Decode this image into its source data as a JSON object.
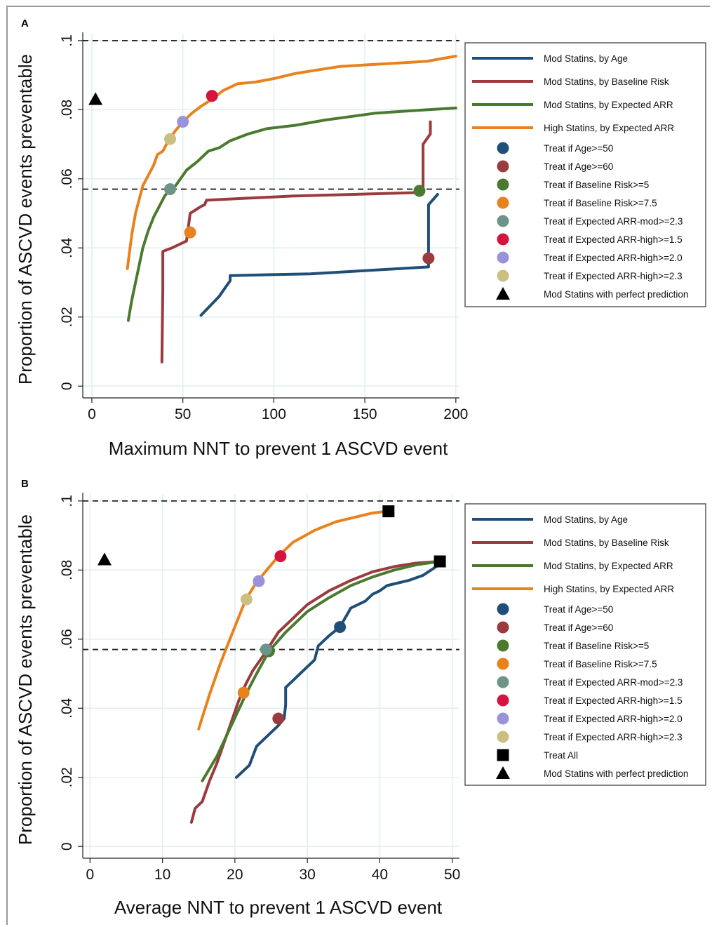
{
  "chart_data": [
    {
      "panel_label": "A",
      "type": "line",
      "xlabel": "Maximum NNT to prevent 1 ASCVD event",
      "ylabel": "Proportion of ASCVD events preventable",
      "xlim": [
        -5,
        202
      ],
      "ylim": [
        -0.003,
        0.102
      ],
      "xticks": [
        0,
        50,
        100,
        150,
        200
      ],
      "xtick_labels": [
        "0",
        "50",
        "100",
        "150",
        "200"
      ],
      "yticks": [
        0,
        0.02,
        0.04,
        0.06,
        0.08,
        0.1
      ],
      "ytick_labels": [
        "0",
        ".02",
        ".04",
        ".06",
        ".08",
        ".1"
      ],
      "grid": true,
      "reference_lines_y": [
        0.1,
        0.057
      ],
      "legend_position": "right",
      "series": [
        {
          "name": "Mod Statins, by Age",
          "color": "#1f4e79",
          "points": [
            [
              60,
              0.0205
            ],
            [
              70,
              0.026
            ],
            [
              74,
              0.029
            ],
            [
              76,
              0.0305
            ],
            [
              76,
              0.032
            ],
            [
              120,
              0.0325
            ],
            [
              185,
              0.0345
            ],
            [
              185,
              0.0525
            ],
            [
              190,
              0.0555
            ]
          ]
        },
        {
          "name": "Mod Statins, by Baseline Risk",
          "color": "#9b3a3f",
          "points": [
            [
              38.5,
              0.007
            ],
            [
              39,
              0.028
            ],
            [
              39,
              0.039
            ],
            [
              44,
              0.04
            ],
            [
              52,
              0.042
            ],
            [
              53,
              0.046
            ],
            [
              54,
              0.05
            ],
            [
              60,
              0.052
            ],
            [
              62,
              0.0525
            ],
            [
              63,
              0.0538
            ],
            [
              110,
              0.055
            ],
            [
              178,
              0.056
            ],
            [
              181,
              0.0568
            ],
            [
              182,
              0.0575
            ],
            [
              182,
              0.07
            ],
            [
              186,
              0.073
            ],
            [
              186,
              0.0765
            ]
          ]
        },
        {
          "name": "Mod Statins, by Expected ARR",
          "color": "#4a7a2e",
          "points": [
            [
              20,
              0.019
            ],
            [
              21,
              0.022
            ],
            [
              22,
              0.025
            ],
            [
              24,
              0.03
            ],
            [
              26,
              0.035
            ],
            [
              28,
              0.04
            ],
            [
              31,
              0.045
            ],
            [
              34,
              0.049
            ],
            [
              37,
              0.052
            ],
            [
              40,
              0.055
            ],
            [
              43,
              0.057
            ],
            [
              46,
              0.058
            ],
            [
              48,
              0.0595
            ],
            [
              52,
              0.0625
            ],
            [
              58,
              0.065
            ],
            [
              64,
              0.068
            ],
            [
              70,
              0.069
            ],
            [
              76,
              0.071
            ],
            [
              86,
              0.073
            ],
            [
              96,
              0.0745
            ],
            [
              112,
              0.0755
            ],
            [
              128,
              0.077
            ],
            [
              142,
              0.078
            ],
            [
              156,
              0.079
            ],
            [
              170,
              0.0795
            ],
            [
              185,
              0.08
            ],
            [
              200,
              0.0805
            ]
          ]
        },
        {
          "name": "High Statins, by Expected ARR",
          "color": "#e8821e",
          "points": [
            [
              19.5,
              0.034
            ],
            [
              21,
              0.04
            ],
            [
              22,
              0.044
            ],
            [
              24,
              0.05
            ],
            [
              26,
              0.054
            ],
            [
              28,
              0.058
            ],
            [
              31,
              0.061
            ],
            [
              34,
              0.064
            ],
            [
              36,
              0.067
            ],
            [
              39,
              0.068
            ],
            [
              42,
              0.071
            ],
            [
              46,
              0.074
            ],
            [
              50,
              0.0765
            ],
            [
              55,
              0.079
            ],
            [
              60,
              0.081
            ],
            [
              66,
              0.083
            ],
            [
              72,
              0.0855
            ],
            [
              80,
              0.0875
            ],
            [
              90,
              0.088
            ],
            [
              100,
              0.089
            ],
            [
              112,
              0.0905
            ],
            [
              124,
              0.0915
            ],
            [
              136,
              0.0925
            ],
            [
              152,
              0.093
            ],
            [
              168,
              0.0935
            ],
            [
              184,
              0.094
            ],
            [
              200,
              0.0955
            ]
          ]
        }
      ],
      "markers": [
        {
          "name": "Treat if Age>=50",
          "shape": "circle",
          "color": "#1f4e79",
          "x": null,
          "y": null
        },
        {
          "name": "Treat if Age>=60",
          "shape": "circle",
          "color": "#9b3a3f",
          "x": 185,
          "y": 0.037
        },
        {
          "name": "Treat if Baseline Risk>=5",
          "shape": "circle",
          "color": "#4a7a2e",
          "x": 180,
          "y": 0.0565
        },
        {
          "name": "Treat if Baseline Risk>=7.5",
          "shape": "circle",
          "color": "#e8821e",
          "x": 54,
          "y": 0.0445
        },
        {
          "name": "Treat if Expected ARR-mod>=2.3",
          "shape": "circle",
          "color": "#6d9488",
          "x": 43,
          "y": 0.057
        },
        {
          "name": "Treat if Expected ARR-high>=1.5",
          "shape": "circle",
          "color": "#d4143f",
          "x": 66,
          "y": 0.084
        },
        {
          "name": "Treat if Expected ARR-high>=2.0",
          "shape": "circle",
          "color": "#9a93da",
          "x": 50,
          "y": 0.0765
        },
        {
          "name": "Treat if Expected ARR-high>=2.3",
          "shape": "circle",
          "color": "#cbc082",
          "x": 43,
          "y": 0.0715
        },
        {
          "name": "Mod Statins with perfect prediction",
          "shape": "triangle",
          "color": "#000000",
          "x": 2,
          "y": 0.083
        }
      ]
    },
    {
      "panel_label": "B",
      "type": "line",
      "xlabel": "Average NNT to prevent 1 ASCVD event",
      "ylabel": "Proportion of ASCVD events preventable",
      "xlim": [
        -1,
        51
      ],
      "ylim": [
        -0.003,
        0.102
      ],
      "xticks": [
        0,
        10,
        20,
        30,
        40,
        50
      ],
      "xtick_labels": [
        "0",
        "10",
        "20",
        "30",
        "40",
        "50"
      ],
      "yticks": [
        0,
        0.02,
        0.04,
        0.06,
        0.08,
        0.1
      ],
      "ytick_labels": [
        "0",
        ".02",
        ".04",
        ".06",
        ".08",
        ".1"
      ],
      "grid": true,
      "reference_lines_y": [
        0.1,
        0.057
      ],
      "legend_position": "right",
      "series": [
        {
          "name": "Mod Statins, by Age",
          "color": "#1f4e79",
          "points": [
            [
              20.2,
              0.02
            ],
            [
              22,
              0.0235
            ],
            [
              23,
              0.029
            ],
            [
              24,
              0.031
            ],
            [
              25,
              0.033
            ],
            [
              26,
              0.035
            ],
            [
              26.8,
              0.037
            ],
            [
              27,
              0.041
            ],
            [
              27,
              0.046
            ],
            [
              28,
              0.048
            ],
            [
              29,
              0.05
            ],
            [
              30,
              0.052
            ],
            [
              31,
              0.054
            ],
            [
              31.5,
              0.058
            ],
            [
              33,
              0.061
            ],
            [
              34.5,
              0.0635
            ],
            [
              36,
              0.069
            ],
            [
              37,
              0.07
            ],
            [
              38,
              0.071
            ],
            [
              39,
              0.073
            ],
            [
              40,
              0.074
            ],
            [
              41,
              0.0755
            ],
            [
              42,
              0.076
            ],
            [
              44,
              0.077
            ],
            [
              46,
              0.0785
            ],
            [
              48.5,
              0.082
            ]
          ]
        },
        {
          "name": "Mod Statins, by Baseline Risk",
          "color": "#9b3a3f",
          "points": [
            [
              14,
              0.007
            ],
            [
              14.5,
              0.011
            ],
            [
              15.5,
              0.013
            ],
            [
              16.5,
              0.019
            ],
            [
              17.5,
              0.024
            ],
            [
              18.5,
              0.03
            ],
            [
              19.5,
              0.036
            ],
            [
              20.5,
              0.042
            ],
            [
              21.5,
              0.047
            ],
            [
              22.5,
              0.051
            ],
            [
              24,
              0.0555
            ],
            [
              26,
              0.062
            ],
            [
              28,
              0.066
            ],
            [
              30,
              0.07
            ],
            [
              33,
              0.074
            ],
            [
              36,
              0.077
            ],
            [
              39,
              0.0795
            ],
            [
              42,
              0.081
            ],
            [
              45,
              0.082
            ],
            [
              48.3,
              0.0825
            ]
          ]
        },
        {
          "name": "Mod Statins, by Expected ARR",
          "color": "#4a7a2e",
          "points": [
            [
              15.5,
              0.019
            ],
            [
              17.5,
              0.026
            ],
            [
              19.5,
              0.035
            ],
            [
              21.5,
              0.044
            ],
            [
              23,
              0.05
            ],
            [
              24.7,
              0.0565
            ],
            [
              27,
              0.062
            ],
            [
              30,
              0.068
            ],
            [
              33,
              0.072
            ],
            [
              36,
              0.0755
            ],
            [
              39,
              0.078
            ],
            [
              42,
              0.08
            ],
            [
              45,
              0.0815
            ],
            [
              48.3,
              0.0825
            ]
          ]
        },
        {
          "name": "High Statins, by Expected ARR",
          "color": "#e8821e",
          "points": [
            [
              15,
              0.034
            ],
            [
              16.5,
              0.044
            ],
            [
              18,
              0.053
            ],
            [
              19.5,
              0.061
            ],
            [
              21.5,
              0.0715
            ],
            [
              23,
              0.0765
            ],
            [
              26,
              0.084
            ],
            [
              28,
              0.088
            ],
            [
              31,
              0.0915
            ],
            [
              34,
              0.094
            ],
            [
              37,
              0.0955
            ],
            [
              39,
              0.0965
            ],
            [
              41,
              0.097
            ]
          ]
        }
      ],
      "markers": [
        {
          "name": "Treat if Age>=50",
          "shape": "circle",
          "color": "#1f4e79",
          "x": 34.5,
          "y": 0.0635
        },
        {
          "name": "Treat if Age>=60",
          "shape": "circle",
          "color": "#9b3a3f",
          "x": 26,
          "y": 0.037
        },
        {
          "name": "Treat if Baseline Risk>=5",
          "shape": "circle",
          "color": "#4a7a2e",
          "x": 24.7,
          "y": 0.0565
        },
        {
          "name": "Treat if Baseline Risk>=7.5",
          "shape": "circle",
          "color": "#e8821e",
          "x": 21.2,
          "y": 0.0445
        },
        {
          "name": "Treat if Expected ARR-mod>=2.3",
          "shape": "circle",
          "color": "#6d9488",
          "x": 24.3,
          "y": 0.057
        },
        {
          "name": "Treat if Expected ARR-high>=1.5",
          "shape": "circle",
          "color": "#d4143f",
          "x": 26.3,
          "y": 0.084
        },
        {
          "name": "Treat if Expected ARR-high>=2.0",
          "shape": "circle",
          "color": "#9a93da",
          "x": 23.3,
          "y": 0.0768
        },
        {
          "name": "Treat if Expected ARR-high>=2.3",
          "shape": "circle",
          "color": "#cbc082",
          "x": 21.6,
          "y": 0.0715
        },
        {
          "name": "Treat All",
          "shape": "square",
          "color": "#000000",
          "points": [
            [
              41.2,
              0.097
            ],
            [
              48.3,
              0.0825
            ]
          ]
        },
        {
          "name": "Mod Statins with perfect prediction",
          "shape": "triangle",
          "color": "#000000",
          "x": 2,
          "y": 0.083
        }
      ]
    }
  ]
}
